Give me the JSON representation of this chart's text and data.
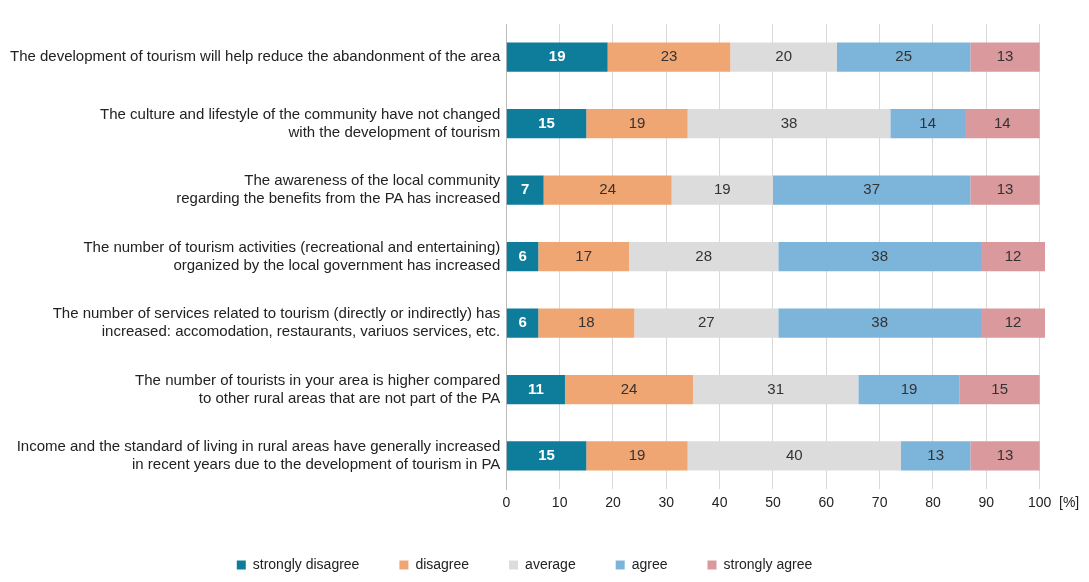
{
  "chart_data": {
    "type": "bar",
    "orientation": "horizontal",
    "stacked": true,
    "xlabel": "[%]",
    "categories": [
      "The development of tourism will help reduce the abandonment of the area",
      "The culture and lifestyle of the community have not changed\nwith the development of tourism",
      "The awareness of the local community\nregarding the benefits from the PA has increased",
      "The number of tourism activities (recreational and entertaining)\norganized by the local government has increased",
      "The number of services related to tourism (directly or indirectly) has\nincreased: accomodation, restaurants, variuos services, etc.",
      "The number of tourists in your area is higher compared\nto other rural areas that are not part of the PA",
      "Income and the standard of living in rural areas have generally increased\nin recent years due to the development of tourism in PA"
    ],
    "series": [
      {
        "name": "strongly disagree",
        "color": "#0e7c9b",
        "values": [
          19,
          15,
          7,
          6,
          6,
          11,
          15
        ]
      },
      {
        "name": "disagree",
        "color": "#f0a672",
        "values": [
          23,
          19,
          24,
          17,
          18,
          24,
          19
        ]
      },
      {
        "name": "average",
        "color": "#dcdcdc",
        "values": [
          20,
          38,
          19,
          28,
          27,
          31,
          40
        ]
      },
      {
        "name": "agree",
        "color": "#7db4da",
        "values": [
          25,
          14,
          37,
          38,
          38,
          19,
          13
        ]
      },
      {
        "name": "strongly agree",
        "color": "#d9999d",
        "values": [
          13,
          14,
          13,
          12,
          12,
          15,
          13
        ]
      }
    ],
    "xlim": [
      0,
      101
    ],
    "xticks": [
      0,
      10,
      20,
      30,
      40,
      50,
      60,
      70,
      80,
      90,
      100
    ],
    "grid": "x",
    "legend": "bottom",
    "data_labels": true
  }
}
